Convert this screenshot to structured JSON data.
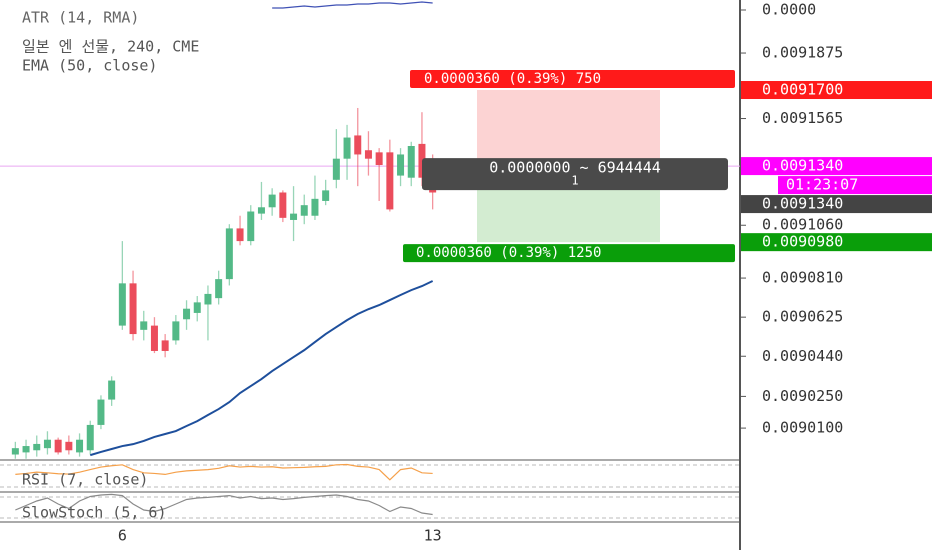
{
  "chart_data": [
    {
      "type": "line",
      "title": "ATR (14, RMA)",
      "ylim": [
        -6e-06,
        3e-06
      ],
      "yticks": [
        {
          "value": 0,
          "label": "0.0000"
        }
      ],
      "series": [
        {
          "name": "ATR (14, RMA)",
          "color": "#3f51b5",
          "values": [
            null,
            null,
            null,
            null,
            null,
            null,
            null,
            null,
            null,
            null,
            null,
            null,
            null,
            null,
            null,
            null,
            null,
            null,
            null,
            null,
            null,
            null,
            null,
            null,
            6e-07,
            6e-07,
            9e-07,
            1.2e-06,
            9e-07,
            1.2e-06,
            1.5e-06,
            1.5e-06,
            1.8e-06,
            1.8e-06,
            2.1e-06,
            2.1e-06,
            1.8e-06,
            2.1e-06,
            2.4e-06,
            2.1e-06
          ]
        }
      ]
    },
    {
      "type": "candlestick",
      "title": "일본 엔 선물, 240, CME",
      "categories": [
        null,
        null,
        null,
        null,
        null,
        null,
        null,
        null,
        null,
        null,
        "6",
        null,
        null,
        null,
        null,
        null,
        null,
        null,
        null,
        null,
        null,
        null,
        null,
        null,
        null,
        null,
        null,
        null,
        null,
        null,
        null,
        null,
        null,
        null,
        null,
        null,
        null,
        null,
        null,
        "13"
      ],
      "open": [
        0.0089975,
        0.0089985,
        0.0089995,
        0.0090005,
        0.0090045,
        0.0090035,
        0.0089985,
        0.0089995,
        0.0090115,
        0.0090235,
        0.0090585,
        0.0090785,
        0.0090565,
        0.0090585,
        0.0090515,
        0.0090515,
        0.0090615,
        0.0090645,
        0.0090685,
        0.0090715,
        0.0090805,
        0.0091045,
        0.0090985,
        0.0091115,
        0.0091145,
        0.0091215,
        0.0091085,
        0.0091105,
        0.0091105,
        0.0091175,
        0.0091275,
        0.0091375,
        0.0091485,
        0.0091415,
        0.0091405,
        0.0091405,
        0.0091295,
        0.0091285,
        0.0091445,
        0.0091245
      ],
      "high": [
        0.0090035,
        0.0090045,
        0.0090065,
        0.0090085,
        0.0090055,
        0.0090065,
        0.0090075,
        0.0090135,
        0.0090255,
        0.0090345,
        0.0090985,
        0.0090845,
        0.0090655,
        0.0090625,
        0.0090545,
        0.0090635,
        0.0090705,
        0.0090725,
        0.0090775,
        0.0090845,
        0.0091065,
        0.0091105,
        0.0091155,
        0.0091265,
        0.0091235,
        0.0091225,
        0.0091245,
        0.0091205,
        0.0091295,
        0.0091275,
        0.0091515,
        0.0091535,
        0.0091615,
        0.0091505,
        0.0091425,
        0.0091465,
        0.0091425,
        0.0091455,
        0.0091595,
        0.0091395
      ],
      "low": [
        0.0089955,
        0.0089955,
        0.0089965,
        0.0089975,
        0.0089975,
        0.0089975,
        0.0089965,
        0.0089975,
        0.0090095,
        0.0090205,
        0.0090565,
        0.0090515,
        0.0090515,
        0.0090455,
        0.0090435,
        0.0090495,
        0.0090565,
        0.0090605,
        0.0090515,
        0.0090685,
        0.0090775,
        0.0090965,
        0.0090965,
        0.0091085,
        0.0091105,
        0.0091075,
        0.0090985,
        0.0091065,
        0.0091085,
        0.0091155,
        0.0091235,
        0.0091275,
        0.0091245,
        0.0091295,
        0.0091175,
        0.0091125,
        0.0091245,
        0.0091245,
        0.0091245,
        0.0091135
      ],
      "close": [
        0.0090005,
        0.0090015,
        0.0090025,
        0.0090045,
        0.0089985,
        0.0089995,
        0.0090045,
        0.0090115,
        0.0090235,
        0.0090325,
        0.0090785,
        0.0090545,
        0.0090605,
        0.0090465,
        0.0090465,
        0.0090605,
        0.0090665,
        0.0090695,
        0.0090735,
        0.0090805,
        0.0091045,
        0.0090985,
        0.0091125,
        0.0091145,
        0.0091205,
        0.0091095,
        0.0091115,
        0.0091155,
        0.0091185,
        0.0091225,
        0.0091375,
        0.0091475,
        0.0091395,
        0.0091375,
        0.0091345,
        0.0091135,
        0.0091395,
        0.0091435,
        0.0091285,
        0.0091215
      ],
      "up_color": "#53b987",
      "down_color": "#eb4d5c",
      "ylim": [
        0.0089949,
        0.0091984
      ],
      "yticks": [
        0.0091875,
        0.0091565,
        {
          "value": 0.009106,
          "label": "0.0091060"
        },
        {
          "value": 0.009081,
          "label": "0.0090810"
        },
        0.0090625,
        {
          "value": 0.009044,
          "label": "0.0090440"
        },
        {
          "value": 0.009025,
          "label": "0.0090250"
        },
        {
          "value": 0.00901,
          "label": "0.0090100"
        }
      ],
      "series": [
        {
          "name": "EMA (50, close)",
          "color": "#1e4f9c",
          "values": [
            null,
            null,
            null,
            null,
            null,
            null,
            null,
            0.0089972,
            0.0089987,
            0.0090001,
            0.0090015,
            0.0090024,
            0.0090039,
            0.0090058,
            0.0090072,
            0.0090086,
            0.009011,
            0.0090133,
            0.0090162,
            0.009019,
            0.0090223,
            0.0090266,
            0.0090299,
            0.0090332,
            0.009037,
            0.0090403,
            0.0090436,
            0.0090469,
            0.0090507,
            0.0090545,
            0.0090578,
            0.0090611,
            0.009064,
            0.0090663,
            0.0090682,
            0.0090706,
            0.009073,
            0.0090753,
            0.0090772,
            0.0090796
          ]
        }
      ],
      "price_labels": [
        {
          "value": 0.00917,
          "label": "0.0091700",
          "color": "#ff1a1a"
        },
        {
          "value": 0.009134,
          "label": "0.0091340",
          "color": "#ff00ff"
        },
        {
          "value": 0.009134,
          "label": "0.0091340",
          "color": "#444444"
        },
        {
          "value": 0.009098,
          "label": "0.0090980",
          "color": "#0a9e0a"
        }
      ],
      "countdown": "01:23:07",
      "position_tool": {
        "stop_text": "0.0000360 (0.39%) 750",
        "target_text": "0.0000360 (0.39%) 1250",
        "info_text": "0.0000000 ~ 6944444",
        "info_subtext": "1"
      }
    },
    {
      "type": "line",
      "ylim": [
        0,
        100
      ],
      "series": [
        {
          "name": "RSI (7, close)",
          "color": "#f5a04a",
          "values": [
            55,
            58,
            62,
            60,
            57,
            56,
            62,
            70,
            78,
            82,
            85,
            70,
            60,
            58,
            55,
            62,
            66,
            68,
            70,
            74,
            82,
            78,
            80,
            78,
            79,
            75,
            76,
            77,
            79,
            80,
            85,
            86,
            80,
            78,
            70,
            38,
            70,
            75,
            60,
            58
          ]
        }
      ]
    },
    {
      "type": "line",
      "ylim": [
        0,
        100
      ],
      "series": [
        {
          "name": "SlowStoch (5, 6)",
          "color": "#8a8a8a",
          "values": [
            40,
            55,
            70,
            80,
            60,
            45,
            70,
            85,
            90,
            92,
            88,
            60,
            40,
            35,
            45,
            60,
            75,
            80,
            82,
            85,
            88,
            80,
            85,
            78,
            80,
            75,
            78,
            82,
            85,
            88,
            90,
            85,
            75,
            70,
            55,
            35,
            50,
            45,
            30,
            25
          ]
        }
      ]
    }
  ]
}
